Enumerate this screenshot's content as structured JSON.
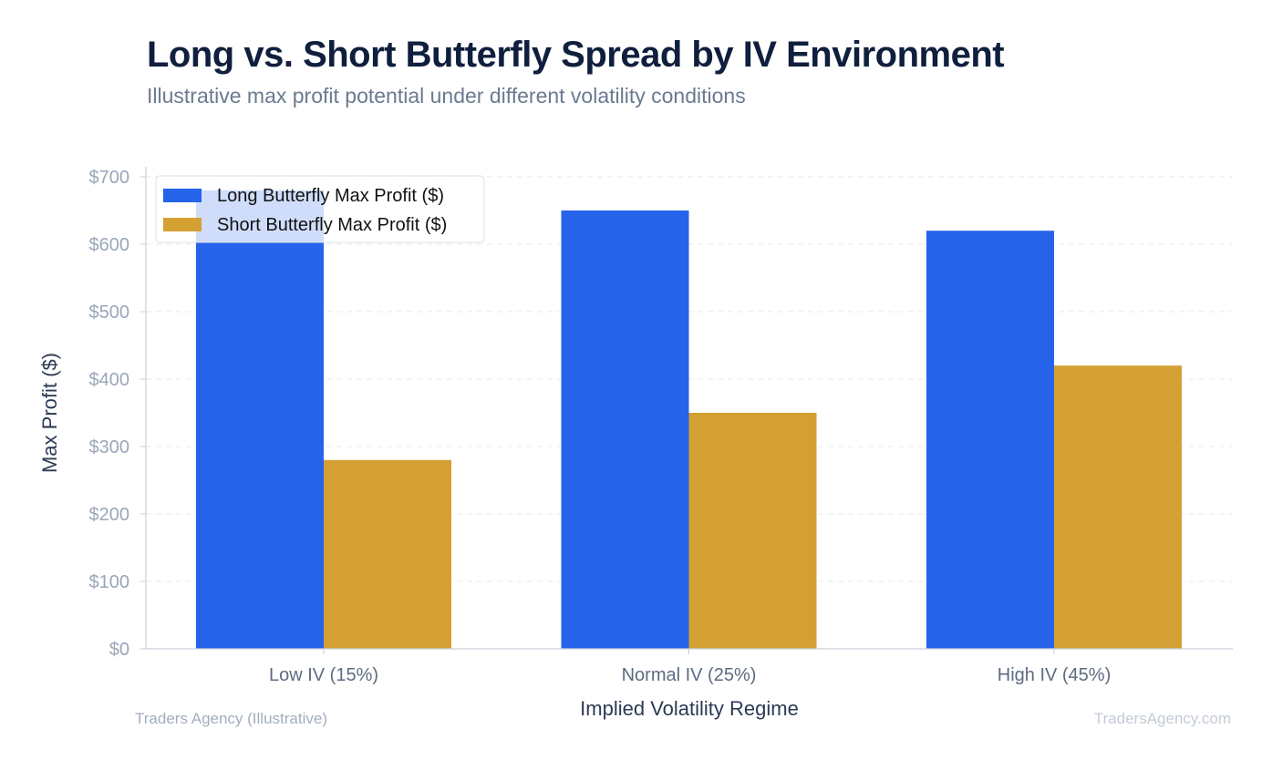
{
  "title": "Long vs. Short Butterfly Spread by IV Environment",
  "subtitle": "Illustrative max profit potential under different volatility conditions",
  "footer": {
    "source": "Traders Agency (Illustrative)",
    "watermark": "TradersAgency.com"
  },
  "chart_data": {
    "type": "bar",
    "title": "Long vs. Short Butterfly Spread by IV Environment",
    "subtitle": "Illustrative max profit potential under different volatility conditions",
    "xlabel": "Implied Volatility Regime",
    "ylabel": "Max Profit ($)",
    "ylim": [
      0,
      700
    ],
    "yticks": [
      0,
      100,
      200,
      300,
      400,
      500,
      600,
      700
    ],
    "ytick_labels": [
      "$0",
      "$100",
      "$200",
      "$300",
      "$400",
      "$500",
      "$600",
      "$700"
    ],
    "grid": "horizontal dashed",
    "legend_position": "top-left",
    "categories": [
      "Low IV (15%)",
      "Normal IV (25%)",
      "High IV (45%)"
    ],
    "series": [
      {
        "name": "Long Butterfly Max Profit ($)",
        "color": "#2563eb",
        "values": [
          680,
          650,
          620
        ]
      },
      {
        "name": "Short Butterfly Max Profit ($)",
        "color": "#d4a033",
        "values": [
          280,
          350,
          420
        ]
      }
    ]
  }
}
